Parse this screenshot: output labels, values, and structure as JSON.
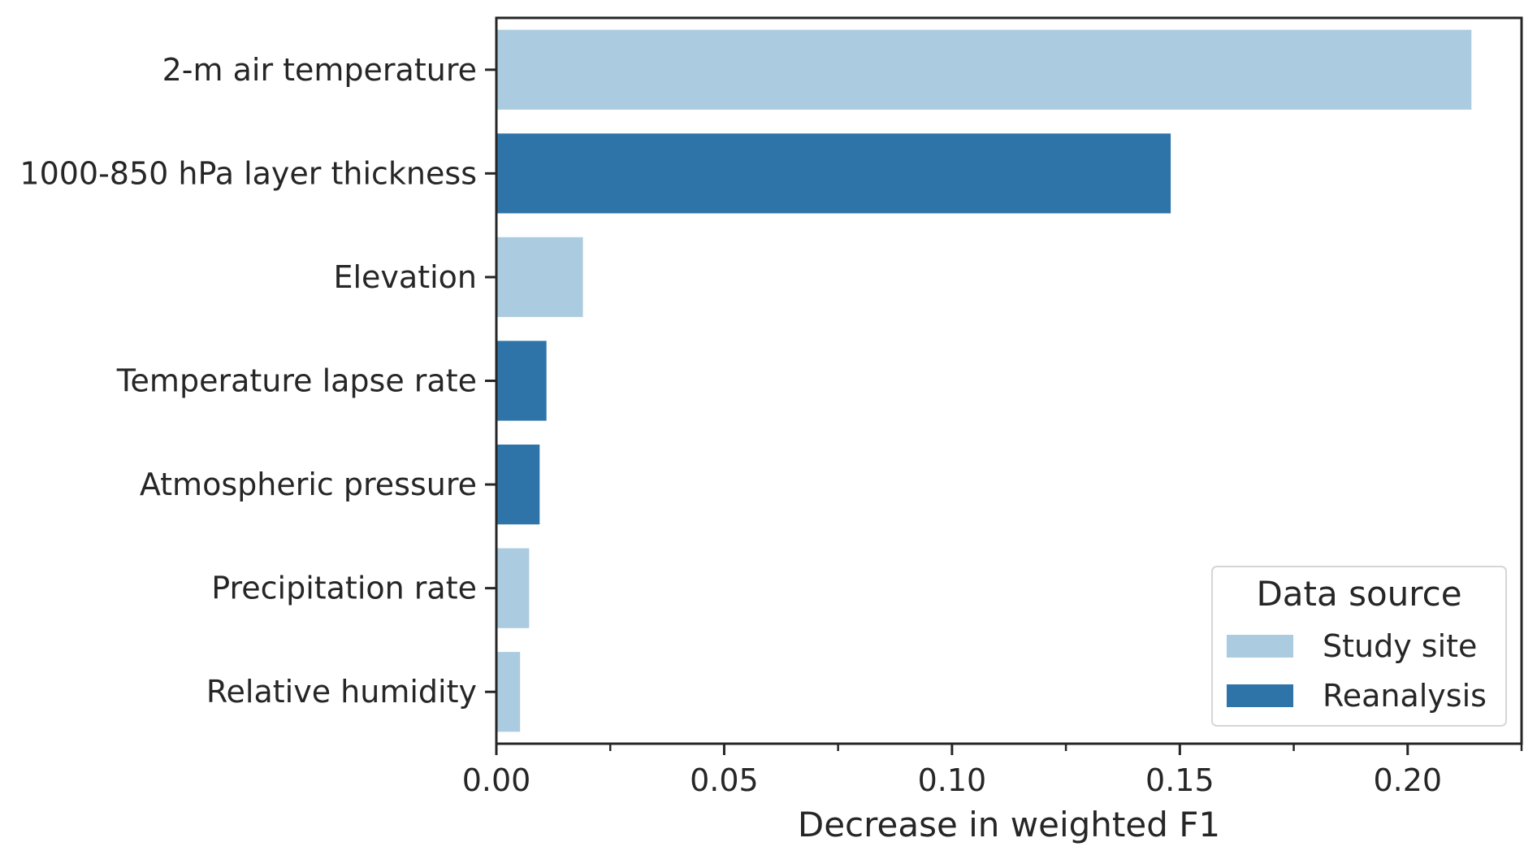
{
  "chart_data": {
    "type": "bar",
    "orientation": "horizontal",
    "categories": [
      "2-m air temperature",
      "1000-850 hPa layer thickness",
      "Elevation",
      "Temperature lapse rate",
      "Atmospheric pressure",
      "Precipitation rate",
      "Relative humidity"
    ],
    "values": [
      0.214,
      0.148,
      0.019,
      0.011,
      0.0095,
      0.0072,
      0.0052
    ],
    "bar_source": [
      "Study site",
      "Reanalysis",
      "Study site",
      "Reanalysis",
      "Reanalysis",
      "Study site",
      "Study site"
    ],
    "xlabel": "Decrease in weighted F1",
    "ylabel": "",
    "xlim": [
      0,
      0.225
    ],
    "xticks_major": [
      0.0,
      0.05,
      0.1,
      0.15,
      0.2
    ],
    "xtick_labels": [
      "0.00",
      "0.05",
      "0.10",
      "0.15",
      "0.20"
    ],
    "xticks_minor": [
      0.025,
      0.075,
      0.125,
      0.175,
      0.225
    ],
    "grid": false,
    "legend": {
      "title": "Data source",
      "placement": "lower-right",
      "entries": [
        {
          "label": "Study site",
          "color": "#abcce0"
        },
        {
          "label": "Reanalysis",
          "color": "#2f74a8"
        }
      ]
    }
  }
}
